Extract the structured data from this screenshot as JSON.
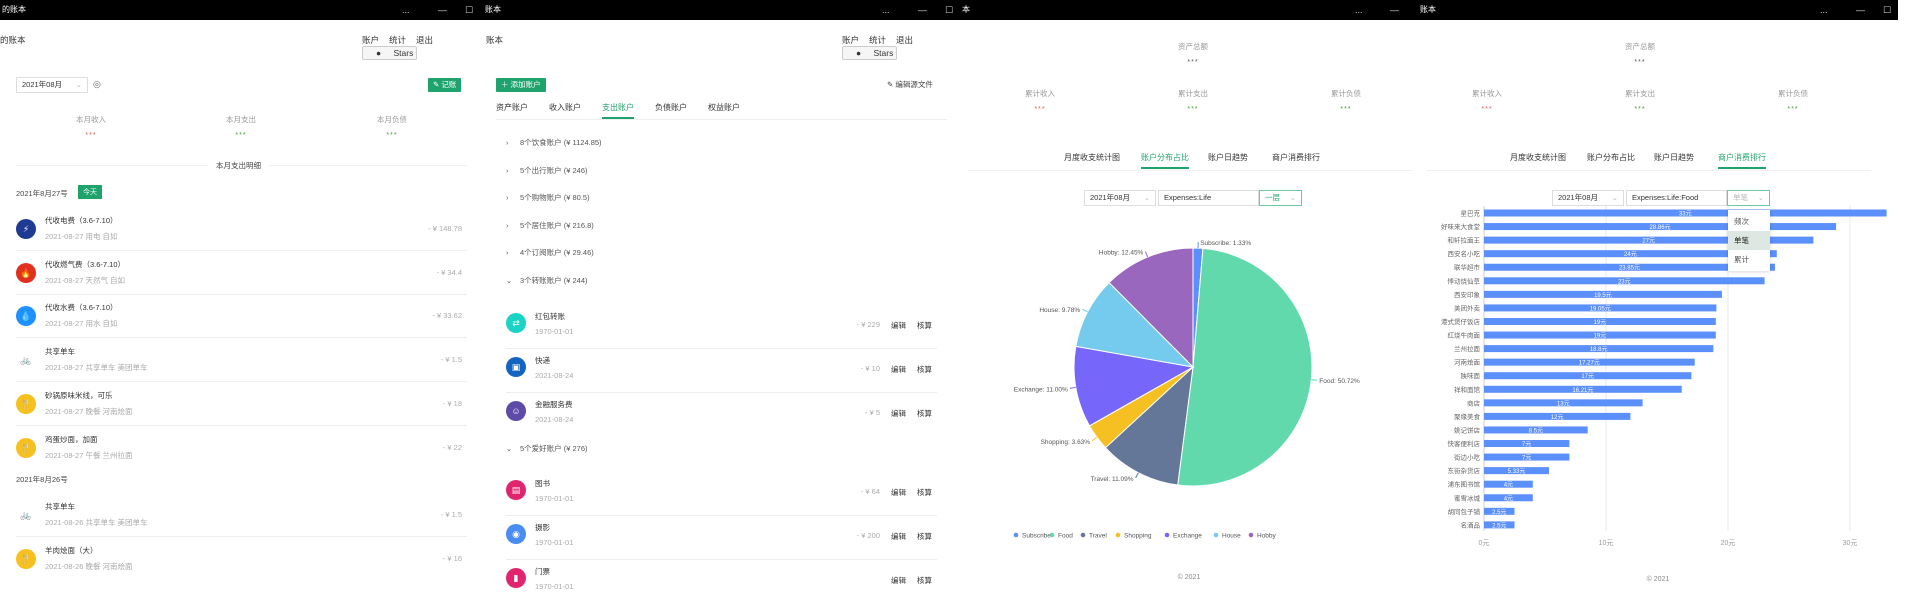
{
  "window": {
    "menu": "...",
    "minimize": "—",
    "maximize": "☐"
  },
  "panel1": {
    "title": "的账本",
    "header": {
      "brand": "的账本",
      "nav": [
        "账户",
        "统计",
        "退出"
      ],
      "stars": "Stars"
    },
    "month_select": "2021年08月",
    "record_button": "记账",
    "stats": [
      {
        "label": "本月收入",
        "value": "***",
        "color": "#e05a5a"
      },
      {
        "label": "本月支出",
        "value": "***",
        "color": "#4a9a3a"
      },
      {
        "label": "本月负债",
        "value": "***",
        "color": "#4a9a3a"
      }
    ],
    "section_title": "本月支出明细",
    "today_badge": "今天",
    "days": [
      {
        "date": "2021年8月27号",
        "items": [
          {
            "icon": "lightning-icon",
            "color": "#1f3a93",
            "glyph": "⚡",
            "title": "代收电费（3.6-7.10）",
            "sub": "2021-08-27 用电 自如",
            "amount": "- ¥ 148.78"
          },
          {
            "icon": "fire-icon",
            "color": "#e0301e",
            "glyph": "🔥",
            "title": "代收燃气费（3.6-7.10）",
            "sub": "2021-08-27 天然气 自如",
            "amount": "- ¥ 34.4"
          },
          {
            "icon": "water-drop-icon",
            "color": "#1e90ff",
            "glyph": "💧",
            "title": "代收水费（3.6-7.10）",
            "sub": "2021-08-27 用水 自如",
            "amount": "- ¥ 33.62"
          },
          {
            "icon": "bicycle-icon",
            "color": "#ffffff",
            "glyph": "🚲",
            "title": "共享单车",
            "sub": "2021-08-27 共享单车 美团单车",
            "amount": "- ¥ 1.5"
          },
          {
            "icon": "utensils-icon",
            "color": "#f5c020",
            "glyph": "🍴",
            "title": "砂锅原味米线，可乐",
            "sub": "2021-08-27 晚餐 河南烩面",
            "amount": "- ¥ 18"
          },
          {
            "icon": "utensils-icon",
            "color": "#f5c020",
            "glyph": "🍴",
            "title": "鸡蛋炒面，加面",
            "sub": "2021-08-27 午餐 兰州拉面",
            "amount": "- ¥ 22"
          }
        ]
      },
      {
        "date": "2021年8月26号",
        "items": [
          {
            "icon": "bicycle-icon",
            "color": "#ffffff",
            "glyph": "🚲",
            "title": "共享单车",
            "sub": "2021-08-26 共享单车 美团单车",
            "amount": "- ¥ 1.5"
          },
          {
            "icon": "utensils-icon",
            "color": "#f5c020",
            "glyph": "🍴",
            "title": "羊肉烩面（大）",
            "sub": "2021-08-26 晚餐 河南烩面",
            "amount": "- ¥ 16"
          }
        ]
      }
    ]
  },
  "panel2": {
    "title": "账本",
    "header": {
      "brand": "账本",
      "nav": [
        "账户",
        "统计",
        "退出"
      ],
      "stars": "Stars"
    },
    "add_account": "添加账户",
    "edit_source": "编辑源文件",
    "tabs": [
      "资产账户",
      "收入账户",
      "支出账户",
      "负债账户",
      "权益账户"
    ],
    "active_tab": 2,
    "groups": [
      {
        "label": "8个饮食账户 (¥ 1124.85)",
        "expanded": false
      },
      {
        "label": "5个出行账户 (¥ 246)",
        "expanded": false
      },
      {
        "label": "5个购物账户 (¥ 80.5)",
        "expanded": false
      },
      {
        "label": "5个居住账户 (¥ 216.8)",
        "expanded": false
      },
      {
        "label": "4个订阅账户 (¥ 29.46)",
        "expanded": false
      },
      {
        "label": "3个转账账户 (¥ 244)",
        "expanded": true,
        "items": [
          {
            "icon": "transfer-icon",
            "color": "#19d3c5",
            "glyph": "⇄",
            "title": "红包转账",
            "date": "1970-01-01",
            "amount": "- ¥ 229"
          },
          {
            "icon": "package-icon",
            "color": "#1565c0",
            "glyph": "▣",
            "title": "快递",
            "date": "2021-08-24",
            "amount": "- ¥ 10"
          },
          {
            "icon": "finance-icon",
            "color": "#5e4ba8",
            "glyph": "☺",
            "title": "金融服务费",
            "date": "2021-08-24",
            "amount": "- ¥ 5"
          }
        ]
      },
      {
        "label": "5个爱好账户 (¥ 276)",
        "expanded": true,
        "items": [
          {
            "icon": "book-icon",
            "color": "#e0246e",
            "glyph": "▤",
            "title": "图书",
            "date": "1970-01-01",
            "amount": "- ¥ 64"
          },
          {
            "icon": "camera-icon",
            "color": "#4a8cf0",
            "glyph": "◉",
            "title": "摄影",
            "date": "1970-01-01",
            "amount": "- ¥ 200"
          },
          {
            "icon": "ticket-icon",
            "color": "#e0246e",
            "glyph": "▮",
            "title": "门票",
            "date": "1970-01-01",
            "amount": ""
          }
        ]
      }
    ],
    "edit_label": "编辑",
    "reconcile_label": "核算"
  },
  "stats_common": {
    "total_label": "资产总额",
    "total_value": "***",
    "stats": [
      {
        "label": "累计收入",
        "value": "***",
        "color": "#e05a5a"
      },
      {
        "label": "累计支出",
        "value": "***",
        "color": "#4a9a3a"
      },
      {
        "label": "累计负债",
        "value": "***",
        "color": "#4a9a3a"
      }
    ],
    "tabs": [
      "月度收支统计图",
      "账户分布占比",
      "账户日趋势",
      "商户消费排行"
    ],
    "copyright": "© 2021"
  },
  "panel3": {
    "title": "本",
    "active_tab": 1,
    "month_select": "2021年08月",
    "account_input": "Expenses:Life",
    "level_select": "一层"
  },
  "panel4": {
    "title": "账本",
    "active_tab": 3,
    "month_select": "2021年08月",
    "account_input": "Expenses:Life:Food",
    "mode_select": "单笔",
    "mode_options": [
      "频次",
      "单笔",
      "累计"
    ],
    "mode_highlight": 1
  },
  "chart_data": [
    {
      "type": "pie",
      "legend_position": "bottom",
      "slices": [
        {
          "name": "Subscribe",
          "value": 1.33,
          "label": "Subscribe: 1.33%",
          "color": "#5b8ff9"
        },
        {
          "name": "Food",
          "value": 50.72,
          "label": "Food: 50.72%",
          "color": "#61d9ac"
        },
        {
          "name": "Travel",
          "value": 11.09,
          "label": "Travel: 11.09%",
          "color": "#657798"
        },
        {
          "name": "Shopping",
          "value": 3.63,
          "label": "Shopping: 3.63%",
          "color": "#f6c022"
        },
        {
          "name": "Exchange",
          "value": 11.0,
          "label": "Exchange: 11.00%",
          "color": "#7666f9"
        },
        {
          "name": "House",
          "value": 9.78,
          "label": "House: 9.78%",
          "color": "#74cbed"
        },
        {
          "name": "Hobby",
          "value": 12.45,
          "label": "Hobby: 12.45%",
          "color": "#9967bd"
        }
      ]
    },
    {
      "type": "bar",
      "orientation": "horizontal",
      "color": "#5b8ff9",
      "xlim": [
        0,
        33
      ],
      "xticks": [
        "0元",
        "10元",
        "20元",
        "30元"
      ],
      "xtick_values": [
        0,
        10,
        20,
        30
      ],
      "grid": true,
      "categories": [
        "星巴克",
        "好味来大食堂",
        "和轩拉面王",
        "西安名小吃",
        "联华超市",
        "悸动烧仙草",
        "西安印象",
        "美团外卖",
        "港式煲仔饭店",
        "红烧牛肉面",
        "兰州拉面",
        "河南烩面",
        "陕味面",
        "祥和面馆",
        "商店",
        "聚缘美食",
        "姚记饼店",
        "快客便利店",
        "街边小吃",
        "东街杂货店",
        "浦东图书馆",
        "蜜雪冰城",
        "胡同包子铺",
        "名酒品"
      ],
      "values": [
        33,
        28.86,
        27,
        24,
        23.85,
        23,
        19.5,
        19.05,
        19,
        19,
        18.8,
        17.27,
        17,
        16.21,
        13,
        12,
        8.5,
        7,
        7,
        5.33,
        4,
        4,
        2.5,
        2.5
      ],
      "value_labels": [
        "33元",
        "28.86元",
        "27元",
        "24元",
        "23.85元",
        "23元",
        "19.5元",
        "19.05元",
        "19元",
        "19元",
        "18.8元",
        "17.27元",
        "17元",
        "16.21元",
        "13元",
        "12元",
        "8.5元",
        "7元",
        "7元",
        "5.33元",
        "4元",
        "4元",
        "2.5元",
        "2.5元"
      ]
    }
  ]
}
